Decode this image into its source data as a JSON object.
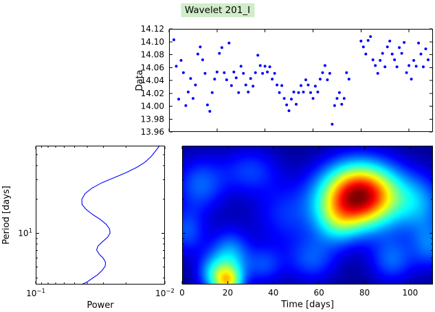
{
  "title": {
    "text": "Wavelet 201_I",
    "highlight_color": "#d1ecc9"
  },
  "colors": {
    "scatter_point": "#0000ff",
    "spectrum_line": "#0000ff",
    "axis": "#000000",
    "background": "#ffffff",
    "colormap_low": "#000083",
    "colormap_high": "#800000"
  },
  "chart_data": [
    {
      "type": "scatter",
      "name": "data-light-curve",
      "xlabel": "",
      "ylabel": "Data",
      "xlim": [
        0,
        110
      ],
      "ylim": [
        13.96,
        14.12
      ],
      "yticks": [
        13.96,
        13.98,
        14.0,
        14.02,
        14.04,
        14.06,
        14.08,
        14.1,
        14.12
      ],
      "ytick_labels": [
        "13.96",
        "13.98",
        "14.00",
        "14.02",
        "14.04",
        "14.06",
        "14.08",
        "14.10",
        "14.12"
      ],
      "xticks": [
        0,
        20,
        40,
        60,
        80,
        100
      ],
      "grid": false,
      "legend": "none",
      "points": [
        [
          2,
          14.103
        ],
        [
          3,
          14.062
        ],
        [
          4,
          14.011
        ],
        [
          5,
          14.071
        ],
        [
          6,
          14.052
        ],
        [
          7,
          14.001
        ],
        [
          8,
          14.022
        ],
        [
          9,
          14.043
        ],
        [
          10,
          14.012
        ],
        [
          11,
          14.033
        ],
        [
          12,
          14.081
        ],
        [
          13,
          14.092
        ],
        [
          14,
          14.072
        ],
        [
          15,
          14.051
        ],
        [
          16,
          14.002
        ],
        [
          17,
          13.992
        ],
        [
          18,
          14.021
        ],
        [
          19,
          14.042
        ],
        [
          20,
          14.053
        ],
        [
          21,
          14.082
        ],
        [
          22,
          14.091
        ],
        [
          23,
          14.052
        ],
        [
          24,
          14.041
        ],
        [
          25,
          14.098
        ],
        [
          26,
          14.032
        ],
        [
          27,
          14.053
        ],
        [
          28,
          14.044
        ],
        [
          29,
          14.021
        ],
        [
          30,
          14.062
        ],
        [
          31,
          14.051
        ],
        [
          32,
          14.033
        ],
        [
          33,
          14.022
        ],
        [
          34,
          14.043
        ],
        [
          35,
          14.031
        ],
        [
          36,
          14.052
        ],
        [
          37,
          14.079
        ],
        [
          38,
          14.063
        ],
        [
          39,
          14.051
        ],
        [
          40,
          14.062
        ],
        [
          41,
          14.053
        ],
        [
          42,
          14.061
        ],
        [
          43,
          14.042
        ],
        [
          44,
          14.051
        ],
        [
          45,
          14.033
        ],
        [
          46,
          14.021
        ],
        [
          47,
          14.032
        ],
        [
          48,
          14.012
        ],
        [
          49,
          14.002
        ],
        [
          50,
          13.993
        ],
        [
          51,
          14.011
        ],
        [
          52,
          14.022
        ],
        [
          53,
          14.003
        ],
        [
          54,
          14.021
        ],
        [
          55,
          14.032
        ],
        [
          56,
          14.022
        ],
        [
          57,
          14.041
        ],
        [
          58,
          14.033
        ],
        [
          59,
          14.021
        ],
        [
          60,
          14.012
        ],
        [
          61,
          14.031
        ],
        [
          62,
          14.022
        ],
        [
          63,
          14.042
        ],
        [
          64,
          14.052
        ],
        [
          65,
          14.063
        ],
        [
          66,
          14.041
        ],
        [
          67,
          14.051
        ],
        [
          68,
          13.972
        ],
        [
          69,
          14.001
        ],
        [
          70,
          14.012
        ],
        [
          71,
          14.021
        ],
        [
          72,
          14.003
        ],
        [
          73,
          14.012
        ],
        [
          74,
          14.052
        ],
        [
          75,
          14.042
        ],
        [
          80,
          14.101
        ],
        [
          81,
          14.092
        ],
        [
          82,
          14.081
        ],
        [
          83,
          14.102
        ],
        [
          84,
          14.108
        ],
        [
          85,
          14.072
        ],
        [
          86,
          14.063
        ],
        [
          87,
          14.051
        ],
        [
          88,
          14.071
        ],
        [
          89,
          14.082
        ],
        [
          90,
          14.061
        ],
        [
          91,
          14.092
        ],
        [
          92,
          14.101
        ],
        [
          93,
          14.081
        ],
        [
          94,
          14.072
        ],
        [
          95,
          14.061
        ],
        [
          96,
          14.091
        ],
        [
          97,
          14.082
        ],
        [
          98,
          14.099
        ],
        [
          99,
          14.052
        ],
        [
          100,
          14.063
        ],
        [
          101,
          14.042
        ],
        [
          102,
          14.071
        ],
        [
          103,
          14.062
        ],
        [
          104,
          14.098
        ],
        [
          105,
          14.081
        ],
        [
          106,
          14.061
        ],
        [
          107,
          14.089
        ],
        [
          108,
          14.072
        ]
      ]
    },
    {
      "type": "line",
      "name": "power-spectrum",
      "xlabel": "Power",
      "ylabel": "Period [days]",
      "x_scale": "log-reversed",
      "y_scale": "log",
      "xlim": [
        0.1,
        0.01
      ],
      "ylim": [
        3.5,
        60
      ],
      "xticks": [
        {
          "value": 0.1,
          "base": "10",
          "exp": "−1"
        },
        {
          "value": 0.01,
          "base": "10",
          "exp": "−2"
        }
      ],
      "yticks": [
        {
          "value": 10,
          "base": "10",
          "exp": "1"
        }
      ],
      "x_minor_ticks": [
        0.09,
        0.08,
        0.07,
        0.06,
        0.05,
        0.04,
        0.03,
        0.02
      ],
      "y_minor_ticks": [
        4,
        5,
        6,
        7,
        8,
        9,
        20,
        30,
        40,
        50
      ],
      "points": [
        [
          0.011,
          60
        ],
        [
          0.0118,
          54
        ],
        [
          0.0128,
          48
        ],
        [
          0.0142,
          43
        ],
        [
          0.0165,
          38.5
        ],
        [
          0.02,
          34.5
        ],
        [
          0.025,
          31
        ],
        [
          0.031,
          28
        ],
        [
          0.037,
          25
        ],
        [
          0.0415,
          22.5
        ],
        [
          0.044,
          20
        ],
        [
          0.0438,
          18
        ],
        [
          0.0405,
          16.2
        ],
        [
          0.036,
          14.6
        ],
        [
          0.0315,
          13.2
        ],
        [
          0.0285,
          12.0
        ],
        [
          0.0268,
          10.9
        ],
        [
          0.0266,
          10.0
        ],
        [
          0.0278,
          9.2
        ],
        [
          0.0305,
          8.4
        ],
        [
          0.033,
          7.7
        ],
        [
          0.0338,
          7.1
        ],
        [
          0.0322,
          6.5
        ],
        [
          0.03,
          6.0
        ],
        [
          0.0288,
          5.5
        ],
        [
          0.029,
          5.1
        ],
        [
          0.0305,
          4.7
        ],
        [
          0.033,
          4.3
        ],
        [
          0.0362,
          4.0
        ],
        [
          0.0398,
          3.7
        ],
        [
          0.044,
          3.5
        ]
      ]
    },
    {
      "type": "heatmap",
      "name": "wavelet-power-map",
      "xlabel": "Time [days]",
      "xlim": [
        0,
        110
      ],
      "ylim": [
        3.5,
        60
      ],
      "y_scale": "log",
      "xticks": [
        0,
        20,
        40,
        60,
        80,
        100
      ],
      "yticks": [
        10
      ],
      "y_minor_ticks": [
        4,
        5,
        6,
        7,
        8,
        9,
        20,
        30,
        40,
        50
      ],
      "colormap": "jet",
      "background_level": 0.015,
      "blobs": [
        {
          "x": 78,
          "y": 0.36,
          "sx": 12,
          "sy": 0.16,
          "a": 0.97
        },
        {
          "x": 68,
          "y": 0.55,
          "sx": 7,
          "sy": 0.12,
          "a": 0.22
        },
        {
          "x": 20,
          "y": 0.98,
          "sx": 4.5,
          "sy": 0.08,
          "a": 0.48
        },
        {
          "x": 21,
          "y": 0.8,
          "sx": 6,
          "sy": 0.13,
          "a": 0.28
        },
        {
          "x": 13,
          "y": 0.92,
          "sx": 5,
          "sy": 0.1,
          "a": 0.22
        },
        {
          "x": 8,
          "y": 0.28,
          "sx": 8,
          "sy": 0.14,
          "a": 0.2
        },
        {
          "x": 30,
          "y": 0.18,
          "sx": 9,
          "sy": 0.12,
          "a": 0.16
        },
        {
          "x": 45,
          "y": 0.5,
          "sx": 10,
          "sy": 0.16,
          "a": 0.14
        },
        {
          "x": 57,
          "y": 0.82,
          "sx": 8,
          "sy": 0.12,
          "a": 0.18
        },
        {
          "x": 92,
          "y": 0.82,
          "sx": 7,
          "sy": 0.12,
          "a": 0.2
        },
        {
          "x": 104,
          "y": 0.42,
          "sx": 8,
          "sy": 0.15,
          "a": 0.22
        },
        {
          "x": 109,
          "y": 0.72,
          "sx": 6,
          "sy": 0.12,
          "a": 0.2
        },
        {
          "x": 2,
          "y": 0.62,
          "sx": 6,
          "sy": 0.12,
          "a": 0.18
        },
        {
          "x": 36,
          "y": 0.86,
          "sx": 6,
          "sy": 0.1,
          "a": 0.16
        }
      ]
    }
  ]
}
